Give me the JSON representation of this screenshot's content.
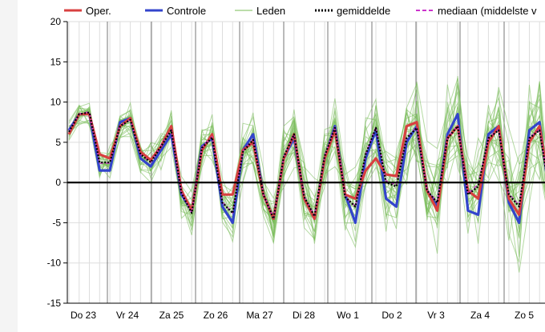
{
  "chart_data": {
    "type": "line",
    "ylim": [
      -15,
      20
    ],
    "yticks": [
      20,
      15,
      10,
      5,
      0,
      -5,
      -10,
      -15
    ],
    "day_labels": [
      "Do 23",
      "Vr 24",
      "Za 25",
      "Zo 26",
      "Ma 27",
      "Di 28",
      "Wo 1",
      "Do 2",
      "Vr 3",
      "Za 4",
      "Zo 5"
    ],
    "x_steps": 48,
    "legend": [
      {
        "key": "oper",
        "label": "Oper."
      },
      {
        "key": "controle",
        "label": "Controle"
      },
      {
        "key": "leden",
        "label": "Leden"
      },
      {
        "key": "gemiddelde",
        "label": "gemiddelde"
      },
      {
        "key": "mediaan",
        "label": "mediaan (middelste v"
      }
    ],
    "colors": {
      "oper": "#d84040",
      "controle": "#3344cc",
      "leden": "#77bb55",
      "gemiddelde": "#000000",
      "mediaan": "#cc33cc",
      "zero": "#000000",
      "grid": "#dddddd",
      "daygrid": "#777777"
    },
    "series": [
      {
        "name": "Oper.",
        "values": [
          6,
          8.5,
          8.5,
          3.5,
          3,
          7,
          8,
          3.8,
          2.8,
          4.5,
          7,
          -1,
          -3.5,
          4,
          6,
          -1.5,
          -1.5,
          4,
          5,
          -1.5,
          -4.5,
          3,
          6,
          -2,
          -4.5,
          3,
          6.5,
          -1.5,
          -2,
          1.5,
          3,
          1,
          0.8,
          7,
          7.5,
          -1,
          -3.5,
          5.5,
          7,
          -1,
          -2,
          5,
          7,
          -2,
          -4,
          5,
          7,
          -1
        ]
      },
      {
        "name": "Controle",
        "values": [
          6.5,
          8.5,
          8.5,
          1.5,
          1.5,
          7.5,
          8,
          3,
          2,
          4,
          6,
          -1.5,
          -3.5,
          4.5,
          5.5,
          -3,
          -5,
          4,
          6,
          -1.5,
          -4.5,
          3,
          5.5,
          -2,
          -4.5,
          3,
          7,
          -1.5,
          -5,
          3,
          6.5,
          -2,
          -3,
          5,
          7,
          -1,
          -3,
          6,
          8.5,
          -3.5,
          -4,
          6,
          7,
          -2.5,
          -5,
          6.5,
          7.5,
          -2
        ]
      },
      {
        "name": "gemiddelde",
        "values": [
          6.3,
          8.5,
          8.7,
          2.5,
          2.5,
          7,
          7.8,
          3.5,
          2.5,
          4.5,
          6.5,
          -1.3,
          -3.8,
          4.3,
          5.6,
          -2.5,
          -3.8,
          3.8,
          5.3,
          -1.5,
          -4.5,
          3.2,
          6,
          -1.8,
          -4.2,
          3.3,
          6.8,
          -1.8,
          -3,
          3.5,
          6.8,
          0,
          -0.5,
          5.5,
          6.8,
          -1,
          -2.5,
          5.5,
          7,
          -1.5,
          -0.5,
          5.5,
          6.5,
          -1.5,
          -3,
          5.5,
          6.5,
          -1.5
        ]
      },
      {
        "name": "mediaan (middelste v",
        "values": [
          6.3,
          8.5,
          8.8,
          2.4,
          2.4,
          7,
          7.8,
          3.5,
          2.5,
          4.6,
          6.6,
          -1.2,
          -3.8,
          4.4,
          5.7,
          -2.4,
          -3.8,
          3.9,
          5.4,
          -1.4,
          -4.4,
          3.3,
          6.1,
          -1.7,
          -4.1,
          3.4,
          6.9,
          -1.7,
          -3,
          3.6,
          6.9,
          0.2,
          -0.3,
          5.6,
          6.9,
          -0.9,
          -2.4,
          5.6,
          7.1,
          -1.4,
          -0.2,
          5.6,
          6.6,
          -1.4,
          -2.8,
          5.6,
          6.6,
          -1.4
        ]
      }
    ]
  }
}
